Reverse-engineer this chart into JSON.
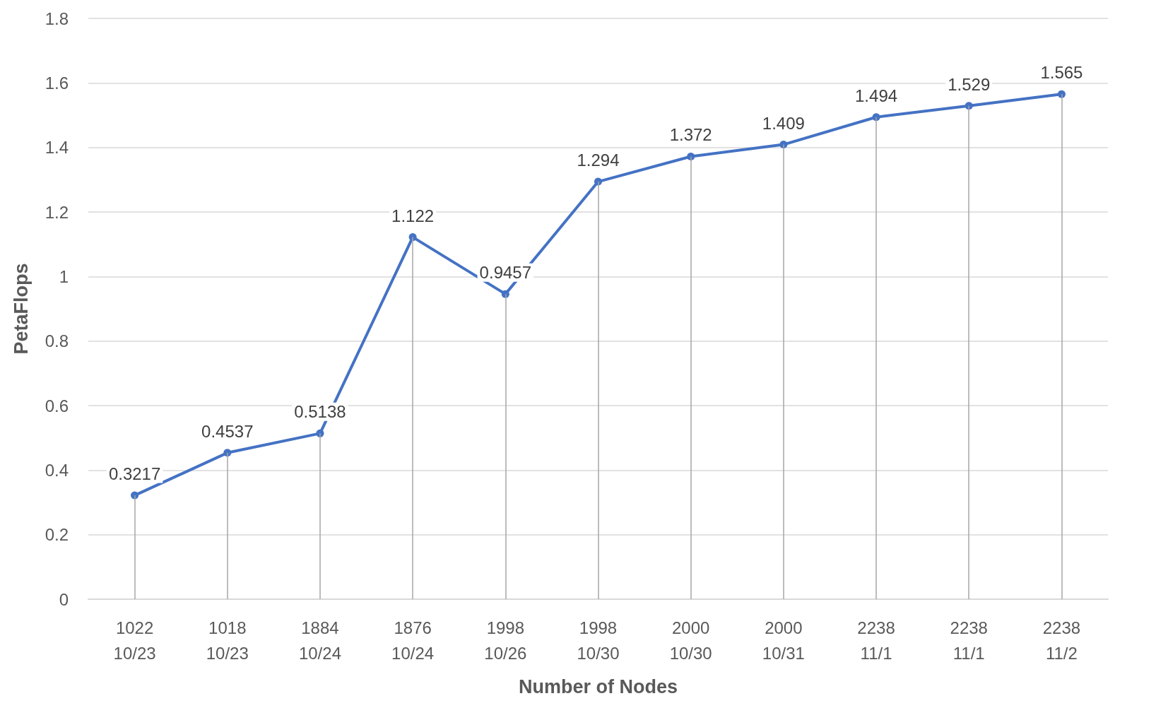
{
  "chart_data": {
    "type": "line",
    "xlabel": "Number of Nodes",
    "ylabel": "PetaFlops",
    "categories": [
      "1022\n10/23",
      "1018\n10/23",
      "1884\n10/24",
      "1876\n10/24",
      "1998\n10/26",
      "1998\n10/30",
      "2000\n10/30",
      "2000\n10/31",
      "2238\n11/1",
      "2238\n11/1",
      "2238\n11/2"
    ],
    "series": [
      {
        "color": "#4472c4",
        "values": [
          0.3217,
          0.4537,
          0.5138,
          1.122,
          0.9457,
          1.294,
          1.372,
          1.409,
          1.494,
          1.529,
          1.565
        ]
      }
    ],
    "ylim": [
      0,
      1.8
    ],
    "yticks": [
      0,
      0.2,
      0.4,
      0.6,
      0.8,
      1,
      1.2,
      1.4,
      1.6,
      1.8
    ],
    "grid": true,
    "marker": "circle",
    "line_style": "solid",
    "data_labels": true
  }
}
